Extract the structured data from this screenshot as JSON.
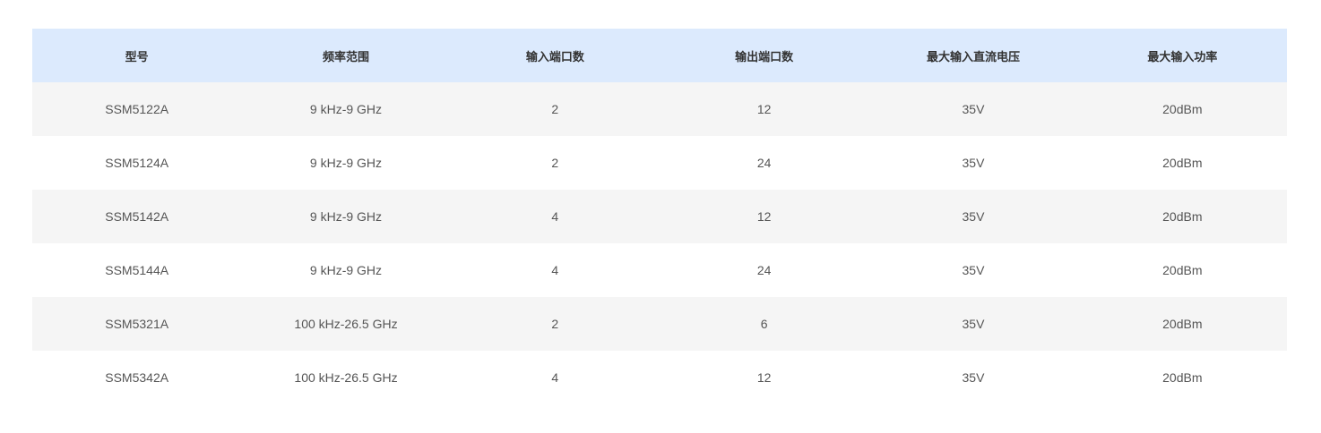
{
  "table": {
    "headers": [
      "型号",
      "频率范围",
      "输入端口数",
      "输出端口数",
      "最大输入直流电压",
      "最大输入功率"
    ],
    "rows": [
      [
        "SSM5122A",
        "9 kHz-9 GHz",
        "2",
        "12",
        "35V",
        "20dBm"
      ],
      [
        "SSM5124A",
        "9 kHz-9 GHz",
        "2",
        "24",
        "35V",
        "20dBm"
      ],
      [
        "SSM5142A",
        "9 kHz-9 GHz",
        "4",
        "12",
        "35V",
        "20dBm"
      ],
      [
        "SSM5144A",
        "9 kHz-9 GHz",
        "4",
        "24",
        "35V",
        "20dBm"
      ],
      [
        "SSM5321A",
        "100 kHz-26.5 GHz",
        "2",
        "6",
        "35V",
        "20dBm"
      ],
      [
        "SSM5342A",
        "100 kHz-26.5 GHz",
        "4",
        "12",
        "35V",
        "20dBm"
      ]
    ]
  },
  "colors": {
    "header_bg": "#dceafd",
    "stripe_bg": "#f5f5f5"
  }
}
